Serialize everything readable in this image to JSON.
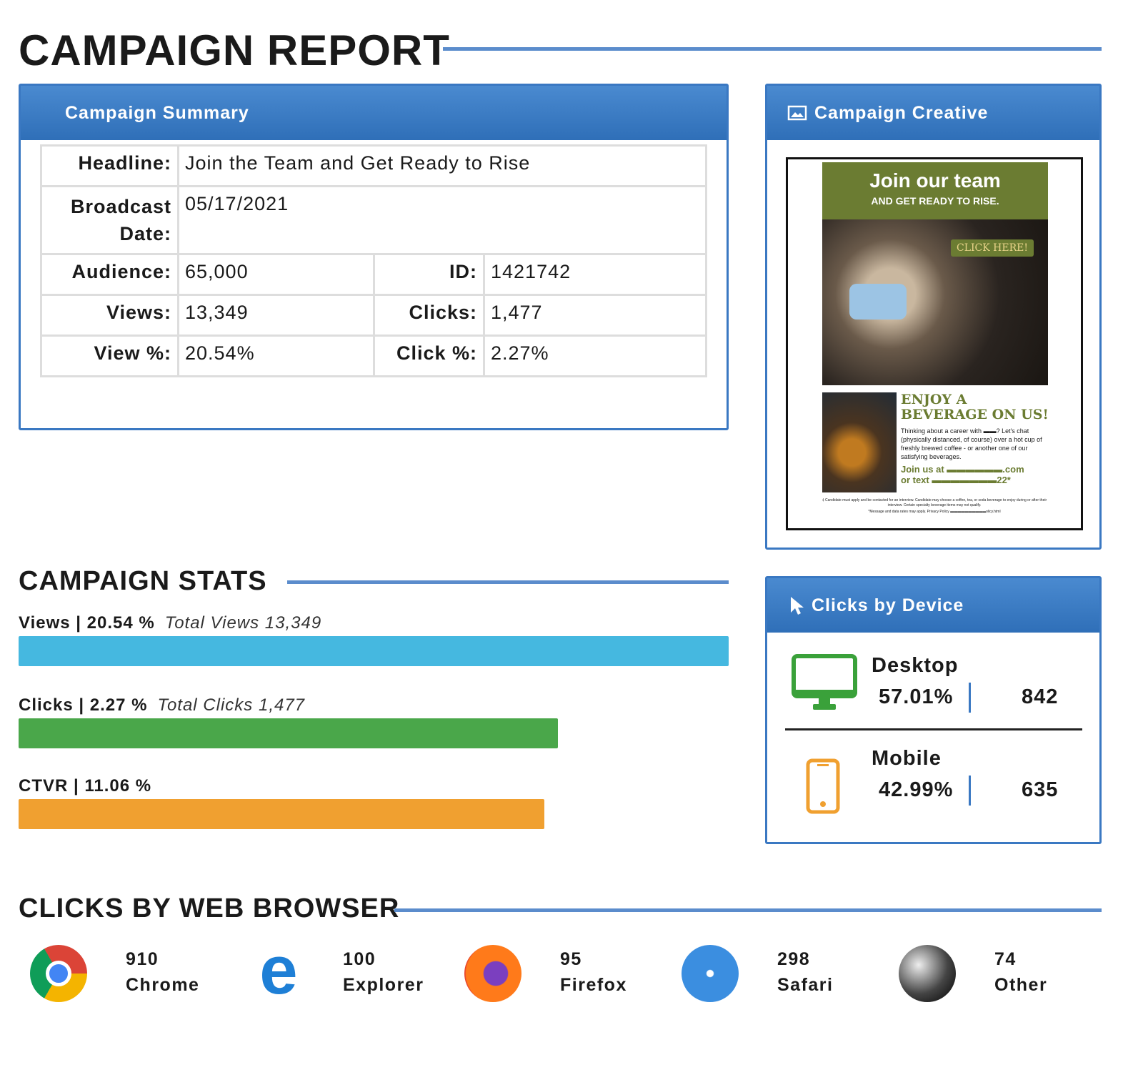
{
  "title": "CAMPAIGN REPORT",
  "summary": {
    "title": "Campaign Summary",
    "headline_label": "Headline:",
    "headline": "Join the Team and Get Ready to Rise",
    "broadcast_label": "Broadcast Date:",
    "broadcast": "05/17/2021",
    "audience_label": "Audience:",
    "audience": "65,000",
    "id_label": "ID:",
    "id": "1421742",
    "views_label": "Views:",
    "views": "13,349",
    "clicks_label": "Clicks:",
    "clicks": "1,477",
    "viewpct_label": "View %:",
    "viewpct": "20.54%",
    "clickpct_label": "Click %:",
    "clickpct": "2.27%"
  },
  "creative": {
    "title": "Campaign Creative",
    "ad_title": "Join our team",
    "ad_sub": "AND GET READY TO RISE.",
    "cta": "CLICK HERE!",
    "h": "ENJOY A BEVERAGE ON US!",
    "body": "Thinking about a career with ▬▬? Let's chat (physically distanced, of course) over a hot cup of freshly brewed coffee - or another one of our satisfying beverages.",
    "join1": "Join us at ▬▬▬▬▬▬.com",
    "join2": "or text ▬▬▬▬▬▬▬22*",
    "fine1": "‡ Candidate must apply and be contacted for an interview. Candidate may choose a coffee, tea, or soda beverage to enjoy during or after their interview. Certain specialty beverage items may not qualify.",
    "fine2": "*Message and data rates may apply. Privacy Policy ▬▬▬▬▬▬▬▬▬▬olicy.html"
  },
  "stats": {
    "title": "CAMPAIGN STATS",
    "bars": [
      {
        "label": "Views | 20.54 %",
        "total": "Total Views 13,349",
        "percent": 100,
        "color": "#45b8e0"
      },
      {
        "label": "Clicks | 2.27 %",
        "total": "Total Clicks 1,477",
        "percent": 76,
        "color": "#4aa74a"
      },
      {
        "label": "CTVR | 11.06 %",
        "total": "",
        "percent": 74,
        "color": "#f0a030"
      }
    ]
  },
  "device": {
    "title": "Clicks by Device",
    "items": [
      {
        "name": "Desktop",
        "pct": "57.01%",
        "count": "842"
      },
      {
        "name": "Mobile",
        "pct": "42.99%",
        "count": "635"
      }
    ]
  },
  "browsers": {
    "title": "CLICKS BY WEB BROWSER",
    "items": [
      {
        "count": "910",
        "name": "Chrome"
      },
      {
        "count": "100",
        "name": "Explorer"
      },
      {
        "count": "95",
        "name": "Firefox"
      },
      {
        "count": "298",
        "name": "Safari"
      },
      {
        "count": "74",
        "name": "Other"
      }
    ]
  }
}
